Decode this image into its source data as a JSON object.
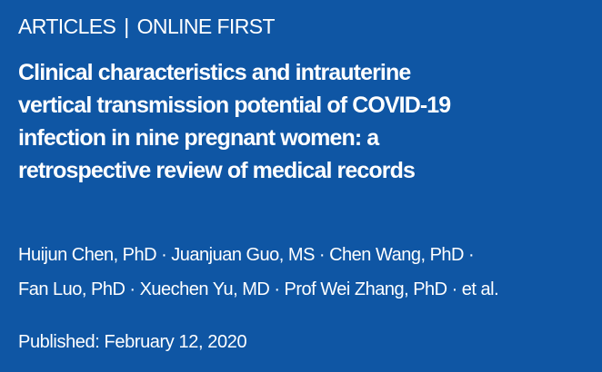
{
  "header": {
    "section": "ARTICLES",
    "separator": "|",
    "status": "ONLINE FIRST"
  },
  "title_lines": [
    "Clinical characteristics and intrauterine",
    "vertical transmission potential of COVID-19",
    "infection in nine pregnant women: a",
    "retrospective review of medical records"
  ],
  "authors": [
    "Huijun Chen, PhD",
    "Juanjuan Guo, MS",
    "Chen Wang, PhD",
    "Fan Luo, PhD",
    "Xuechen Yu, MD",
    "Prof Wei Zhang, PhD",
    "et al."
  ],
  "author_separator": "·",
  "published": "Published: February 12, 2020",
  "colors": {
    "background": "#0f56a4",
    "text": "#ffffff"
  }
}
